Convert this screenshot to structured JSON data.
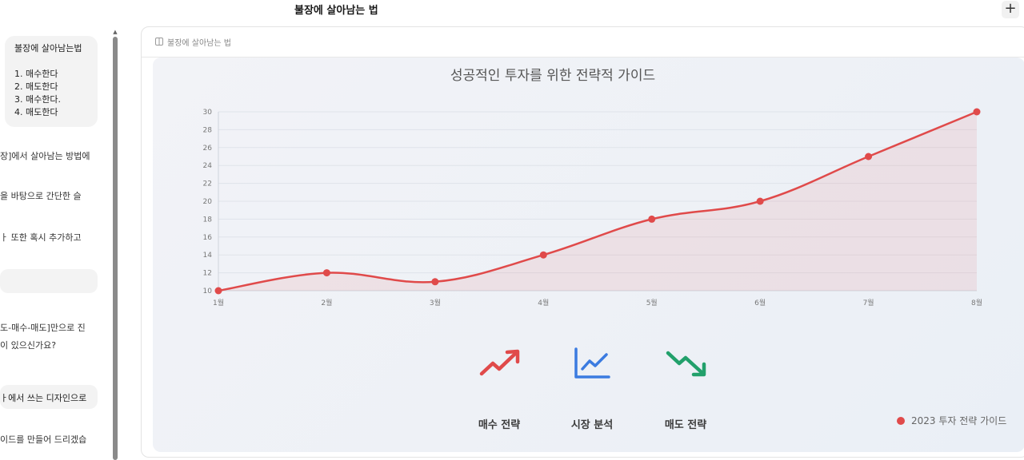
{
  "header": {
    "title": "불장에 살아남는 법",
    "add_label": "+"
  },
  "chat": {
    "user_message": {
      "title": "불장에 살아남는법",
      "items": [
        "1. 매수한다",
        "2. 매도한다",
        "3. 매수한다.",
        "4. 매도한다"
      ]
    },
    "lines": [
      "장]에서 살아남는 방법에",
      "을 바탕으로 간단한 슬",
      "ㅏ 또한 혹시 추가하고",
      "도-매수-매도]만으로 진",
      "이 있으신가요?",
      "ㅏ에서 쓰는 디자인으로",
      "이드를 만들어 드리겠습"
    ],
    "empty_pill": ""
  },
  "panel": {
    "title": "불장에 살아남는 법"
  },
  "chart_data": {
    "type": "line",
    "title": "성공적인 투자를 위한 전략적 가이드",
    "categories": [
      "1월",
      "2월",
      "3월",
      "4월",
      "5월",
      "6월",
      "7월",
      "8월"
    ],
    "series": [
      {
        "name": "2023 투자 전략 가이드",
        "values": [
          10,
          12,
          11,
          14,
          18,
          20,
          25,
          30
        ],
        "color": "#e04a4a"
      }
    ],
    "yticks": [
      10,
      12,
      14,
      16,
      18,
      20,
      22,
      24,
      26,
      28,
      30
    ],
    "ylim": [
      10,
      30
    ],
    "grid": true,
    "fill": true,
    "legend": "bottom-right"
  },
  "strategies": [
    {
      "icon": "trending-up-icon",
      "label": "매수 전략",
      "color": "#e04a4a"
    },
    {
      "icon": "line-chart-icon",
      "label": "시장 분석",
      "color": "#3b7be0"
    },
    {
      "icon": "trending-down-icon",
      "label": "매도 전략",
      "color": "#22a06b"
    }
  ]
}
